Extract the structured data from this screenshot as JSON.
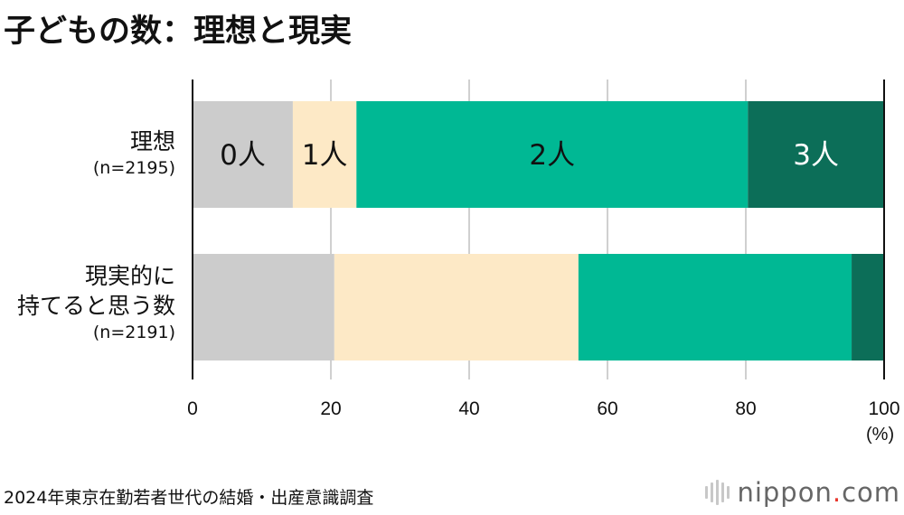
{
  "title": "子どもの数：理想と現実",
  "chart_data": {
    "type": "bar",
    "orientation": "horizontal",
    "stacked": true,
    "categories": [
      {
        "name": "理想",
        "count": "(n=2195)",
        "name_lines": [
          "理想"
        ]
      },
      {
        "name": "現実的に持てると思う数",
        "count": "(n=2191)",
        "name_lines": [
          "現実的に",
          "持てると思う数"
        ]
      }
    ],
    "series": [
      {
        "name": "0人",
        "color": "#cccccc",
        "label_color": "#111111",
        "values": [
          14.5,
          20.5
        ]
      },
      {
        "name": "1人",
        "color": "#fde9c6",
        "label_color": "#111111",
        "values": [
          9.2,
          35.3
        ]
      },
      {
        "name": "2人",
        "color": "#00b894",
        "label_color": "#111111",
        "values": [
          56.6,
          39.5
        ]
      },
      {
        "name": "3人",
        "color": "#0c6e58",
        "label_color": "#ffffff",
        "values": [
          19.7,
          4.7
        ]
      }
    ],
    "xlim": [
      0,
      100
    ],
    "xticks": [
      "0",
      "20",
      "40",
      "60",
      "80",
      "100"
    ],
    "xunit": "(%)",
    "grid": true,
    "legend": "labels inside first bar"
  },
  "source": "2024年東京在勤若者世代の結婚・出産意識調査",
  "brand": {
    "name": "nippon",
    "dot": ".",
    "suffix": "com"
  }
}
